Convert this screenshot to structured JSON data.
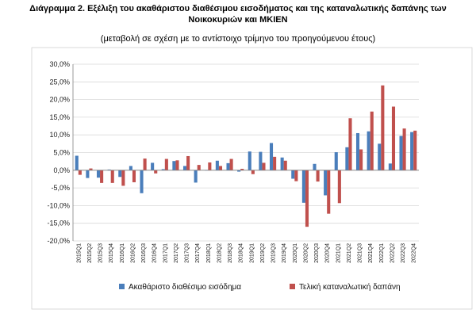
{
  "header": {
    "title_line1": "Διάγραμμα 2. Εξέλιξη του ακαθάριστου διαθέσιμου εισοδήματος και της καταναλωτικής δαπάνης των",
    "title_line2": "Νοικοκυριών και ΜΚΙΕΝ",
    "subtitle": "(μεταβολή σε σχέση με το αντίστοιχο τρίμηνο του προηγούμενου έτους)"
  },
  "chart_data": {
    "type": "bar",
    "categories": [
      "2015Q1",
      "2015Q2",
      "2015Q3",
      "2015Q4",
      "2016Q1",
      "2016Q2",
      "2016Q3",
      "2016Q4",
      "2017Q1",
      "2017Q2",
      "2017Q3",
      "2017Q4",
      "2018Q1",
      "2018Q2",
      "2018Q3",
      "2018Q4",
      "2019Q1",
      "2019Q2",
      "2019Q3",
      "2019Q4",
      "2020Q1",
      "2020Q2",
      "2020Q3",
      "2020Q4",
      "2021Q1",
      "2021Q2",
      "2021Q3",
      "2021Q4",
      "2022Q1",
      "2022Q2",
      "2022Q3",
      "2022Q4"
    ],
    "series": [
      {
        "name": "Ακαθάριστο διαθέσιμο εισόδημα",
        "color": "#4a7ebb",
        "values": [
          4.1,
          -2.2,
          -2.1,
          0.2,
          -1.9,
          1.2,
          -6.5,
          2.1,
          0.3,
          2.6,
          1.2,
          -3.5,
          0.0,
          2.7,
          2.0,
          -0.4,
          5.3,
          5.2,
          7.7,
          3.6,
          -2.4,
          -9.2,
          1.8,
          -7.1,
          5.1,
          6.5,
          10.5,
          11.0,
          7.5,
          1.9,
          9.7,
          10.8
        ]
      },
      {
        "name": "Τελική καταναλωτική δαπάνη",
        "color": "#c0504d",
        "values": [
          -1.3,
          0.5,
          -3.6,
          -3.6,
          -4.4,
          -3.4,
          3.3,
          -0.9,
          3.2,
          2.8,
          4.0,
          1.5,
          2.2,
          1.2,
          3.2,
          0.4,
          -1.1,
          2.1,
          3.8,
          2.7,
          -3.1,
          -16.0,
          -3.2,
          -12.3,
          -9.3,
          14.7,
          5.9,
          16.6,
          24.0,
          18.0,
          11.8,
          11.2
        ]
      }
    ],
    "ylim": [
      -20,
      30
    ],
    "yticks": [
      -20,
      -15,
      -10,
      -5,
      0,
      5,
      10,
      15,
      20,
      25,
      30
    ],
    "ytick_labels": [
      "-20,0%",
      "-15,0%",
      "-10,0%",
      "-5,0%",
      "0,0%",
      "5,0%",
      "10,0%",
      "15,0%",
      "20,0%",
      "25,0%",
      "30,0%"
    ],
    "grid": true,
    "legend_position": "bottom"
  }
}
